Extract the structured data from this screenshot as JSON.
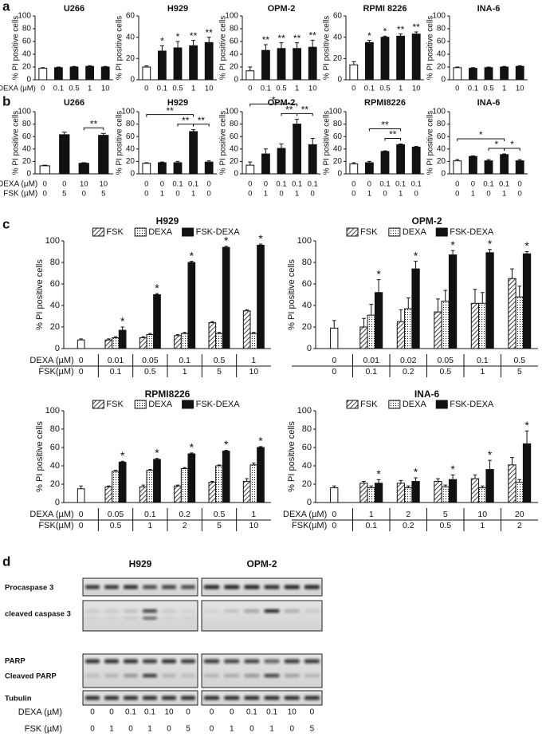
{
  "panel_labels": [
    "a",
    "b",
    "c",
    "d"
  ],
  "chart_data": [
    {
      "type": "bar",
      "title": "U266",
      "ylabel": "% PI positive cells",
      "x_label": "DEXA (µM)",
      "categories": [
        "0",
        "0.1",
        "0.5",
        "1",
        "10"
      ],
      "values": [
        18,
        19,
        20,
        21,
        20
      ],
      "errors": [
        1,
        1,
        1,
        1,
        1
      ],
      "colors": [
        "#ffffff",
        "#111111",
        "#111111",
        "#111111",
        "#111111"
      ],
      "ylim": [
        0,
        100
      ],
      "yticks": [
        0,
        20,
        40,
        60,
        80,
        100
      ]
    },
    {
      "type": "bar",
      "title": "H929",
      "ylabel": "% PI positive cells",
      "categories": [
        "0",
        "0.1",
        "0.5",
        "1",
        "10"
      ],
      "values": [
        12,
        27,
        30,
        32,
        35
      ],
      "errors": [
        1,
        5,
        6,
        5,
        5
      ],
      "stars": [
        null,
        "*",
        "*",
        "**",
        "**"
      ],
      "colors": [
        "#ffffff",
        "#111111",
        "#111111",
        "#111111",
        "#111111"
      ],
      "ylim": [
        0,
        60
      ],
      "yticks": [
        0,
        20,
        40,
        60
      ]
    },
    {
      "type": "bar",
      "title": "OPM-2",
      "ylabel": "% PI positive cells",
      "categories": [
        "0",
        "0.1",
        "0.5",
        "1",
        "10"
      ],
      "values": [
        14,
        46,
        49,
        49,
        51
      ],
      "errors": [
        6,
        9,
        9,
        9,
        11
      ],
      "stars": [
        null,
        "**",
        "**",
        "**",
        "**"
      ],
      "colors": [
        "#ffffff",
        "#111111",
        "#111111",
        "#111111",
        "#111111"
      ],
      "ylim": [
        0,
        100
      ],
      "yticks": [
        0,
        20,
        40,
        60,
        80,
        100
      ]
    },
    {
      "type": "bar",
      "title": "RPMI 8226",
      "ylabel": "% PI positive cells",
      "categories": [
        "0",
        "0.1",
        "0.5",
        "1",
        "10"
      ],
      "values": [
        14,
        35,
        40,
        41,
        43
      ],
      "errors": [
        3,
        2,
        1,
        2,
        2
      ],
      "stars": [
        null,
        "*",
        "*",
        "**",
        "**"
      ],
      "colors": [
        "#ffffff",
        "#111111",
        "#111111",
        "#111111",
        "#111111"
      ],
      "ylim": [
        0,
        60
      ],
      "yticks": [
        0,
        20,
        40,
        60
      ]
    },
    {
      "type": "bar",
      "title": "INA-6",
      "ylabel": "% PI positive cells",
      "categories": [
        "0",
        "0.1",
        "0.5",
        "1",
        "10"
      ],
      "values": [
        19,
        18,
        19,
        20,
        21
      ],
      "errors": [
        1,
        1,
        1,
        1,
        1
      ],
      "colors": [
        "#ffffff",
        "#111111",
        "#111111",
        "#111111",
        "#111111"
      ],
      "ylim": [
        0,
        100
      ],
      "yticks": [
        0,
        20,
        40,
        60,
        80,
        100
      ]
    },
    {
      "type": "bar",
      "title": "U266",
      "ylabel": "% PI positive cells",
      "rows": [
        {
          "label": "DEXA (µM)",
          "values": [
            "0",
            "0",
            "10",
            "10"
          ]
        },
        {
          "label": "FSK (µM)",
          "values": [
            "0",
            "5",
            "0",
            "5"
          ]
        }
      ],
      "values": [
        13,
        63,
        17,
        62
      ],
      "errors": [
        1,
        4,
        1,
        3
      ],
      "brackets": [
        {
          "from": 2,
          "to": 3,
          "label": "**"
        }
      ],
      "colors": [
        "#ffffff",
        "#111111",
        "#111111",
        "#111111"
      ],
      "ylim": [
        0,
        100
      ],
      "yticks": [
        0,
        20,
        40,
        60,
        80,
        100
      ]
    },
    {
      "type": "bar",
      "title": "H929",
      "ylabel": "% PI positive cells",
      "rows": [
        {
          "values": [
            "0",
            "0",
            "0.1",
            "0.1",
            "0"
          ]
        },
        {
          "values": [
            "0",
            "1",
            "0",
            "1",
            "0"
          ]
        }
      ],
      "values": [
        17,
        18,
        18,
        68,
        19
      ],
      "errors": [
        1,
        1,
        2,
        3,
        2
      ],
      "brackets": [
        {
          "from": 0,
          "to": 3,
          "label": "**"
        },
        {
          "from": 2,
          "to": 3,
          "label": "**"
        },
        {
          "from": 3,
          "to": 4,
          "label": "**"
        }
      ],
      "colors": [
        "#ffffff",
        "#111111",
        "#111111",
        "#111111",
        "#111111"
      ],
      "ylim": [
        0,
        100
      ],
      "yticks": [
        0,
        20,
        40,
        60,
        80,
        100
      ]
    },
    {
      "type": "bar",
      "title": "OPM-2",
      "ylabel": "% PI positive cells",
      "rows": [
        {
          "values": [
            "0",
            "0",
            "0.1",
            "0.1",
            "0.1"
          ]
        },
        {
          "values": [
            "0",
            "1",
            "0",
            "1",
            "0"
          ]
        }
      ],
      "values": [
        14,
        32,
        41,
        80,
        47
      ],
      "errors": [
        5,
        8,
        7,
        8,
        10
      ],
      "brackets": [
        {
          "from": 0,
          "to": 3,
          "label": "*"
        },
        {
          "from": 2,
          "to": 3,
          "label": "**"
        },
        {
          "from": 3,
          "to": 4,
          "label": "**"
        }
      ],
      "colors": [
        "#ffffff",
        "#111111",
        "#111111",
        "#111111",
        "#111111"
      ],
      "ylim": [
        0,
        100
      ],
      "yticks": [
        0,
        20,
        40,
        60,
        80,
        100
      ]
    },
    {
      "type": "bar",
      "title": "RPMI8226",
      "ylabel": "% PI positive cells",
      "rows": [
        {
          "values": [
            "0",
            "0",
            "0.1",
            "0.1",
            "0.1"
          ]
        },
        {
          "values": [
            "0",
            "1",
            "0",
            "1",
            "0"
          ]
        }
      ],
      "values": [
        16,
        18,
        36,
        47,
        43
      ],
      "errors": [
        2,
        2,
        1,
        1,
        1
      ],
      "brackets": [
        {
          "from": 1,
          "to": 3,
          "label": "**"
        },
        {
          "from": 2,
          "to": 3,
          "label": "**"
        }
      ],
      "colors": [
        "#ffffff",
        "#111111",
        "#111111",
        "#111111",
        "#111111"
      ],
      "ylim": [
        0,
        100
      ],
      "yticks": [
        0,
        20,
        40,
        60,
        80,
        100
      ]
    },
    {
      "type": "bar",
      "title": "INA-6",
      "ylabel": "% PI positive cells",
      "rows": [
        {
          "values": [
            "0",
            "0",
            "0.1",
            "0.1",
            "0"
          ]
        },
        {
          "values": [
            "0",
            "1",
            "0",
            "1",
            "0"
          ]
        }
      ],
      "values": [
        21,
        28,
        21,
        31,
        21
      ],
      "errors": [
        2,
        1,
        2,
        1,
        2
      ],
      "brackets": [
        {
          "from": 0,
          "to": 3,
          "label": "*"
        },
        {
          "from": 2,
          "to": 3,
          "label": "*"
        },
        {
          "from": 3,
          "to": 4,
          "label": "*"
        }
      ],
      "colors": [
        "#ffffff",
        "#111111",
        "#111111",
        "#111111",
        "#111111"
      ],
      "ylim": [
        0,
        100
      ],
      "yticks": [
        0,
        20,
        40,
        60,
        80,
        100
      ]
    },
    {
      "type": "grouped_bar",
      "title": "H929",
      "ylabel": "% PI positive cells",
      "rows": [
        {
          "label": "DEXA (µM)",
          "values": [
            "0",
            "0.01",
            "0.05",
            "0.1",
            "0.5",
            "1"
          ]
        },
        {
          "label": "FSK(µM)",
          "values": [
            "0",
            "0.1",
            "0.5",
            "1",
            "5",
            "10"
          ]
        }
      ],
      "control": {
        "value": 8,
        "error": 1,
        "color": "#ffffff"
      },
      "series": [
        {
          "name": "FSK",
          "pattern": "hatch",
          "values": [
            null,
            8,
            10,
            12,
            24,
            35
          ],
          "errors": [
            null,
            1,
            1,
            1,
            1,
            1
          ]
        },
        {
          "name": "DEXA",
          "pattern": "dots",
          "values": [
            null,
            10,
            13,
            14,
            14,
            14
          ],
          "errors": [
            null,
            1,
            1,
            1,
            1,
            1
          ]
        },
        {
          "name": "FSK-DEXA",
          "pattern": "solid",
          "values": [
            null,
            17,
            50,
            80,
            94,
            96
          ],
          "errors": [
            null,
            3,
            1,
            1,
            1,
            1
          ],
          "stars": [
            null,
            "*",
            "*",
            "*",
            "*",
            "*"
          ]
        }
      ],
      "ylim": [
        0,
        100
      ],
      "yticks": [
        0,
        20,
        40,
        60,
        80,
        100
      ]
    },
    {
      "type": "grouped_bar",
      "title": "OPM-2",
      "ylabel": "% PI positive cells",
      "rows": [
        {
          "values": [
            "0",
            "0.01",
            "0.02",
            "0.05",
            "0.1",
            "0.5"
          ]
        },
        {
          "values": [
            "0",
            "0.1",
            "0.2",
            "0.5",
            "1",
            "5"
          ]
        }
      ],
      "control": {
        "value": 19,
        "error": 7,
        "color": "#ffffff"
      },
      "series": [
        {
          "name": "FSK",
          "pattern": "hatch",
          "values": [
            null,
            20,
            25,
            34,
            42,
            65
          ],
          "errors": [
            null,
            8,
            11,
            12,
            13,
            9
          ]
        },
        {
          "name": "DEXA",
          "pattern": "dots",
          "values": [
            null,
            31,
            37,
            44,
            42,
            48
          ],
          "errors": [
            null,
            10,
            10,
            10,
            10,
            10
          ]
        },
        {
          "name": "FSK-DEXA",
          "pattern": "solid",
          "values": [
            null,
            52,
            74,
            87,
            89,
            88
          ],
          "errors": [
            null,
            12,
            7,
            4,
            3,
            2
          ],
          "stars": [
            null,
            "*",
            "*",
            "*",
            "*",
            "*"
          ]
        }
      ],
      "ylim": [
        0,
        100
      ],
      "yticks": [
        0,
        20,
        40,
        60,
        80,
        100
      ]
    },
    {
      "type": "grouped_bar",
      "title": "RPMI8226",
      "ylabel": "% PI positive cells",
      "rows": [
        {
          "label": "DEXA (µM)",
          "values": [
            "0",
            "0.05",
            "0.1",
            "0.2",
            "0.5",
            "1"
          ]
        },
        {
          "label": "FSK(µM)",
          "values": [
            "0",
            "0.5",
            "1",
            "2",
            "5",
            "10"
          ]
        }
      ],
      "control": {
        "value": 15,
        "error": 3,
        "color": "#ffffff"
      },
      "series": [
        {
          "name": "FSK",
          "pattern": "hatch",
          "values": [
            null,
            17,
            17,
            18,
            22,
            23
          ],
          "errors": [
            null,
            1,
            2,
            1,
            1,
            3
          ]
        },
        {
          "name": "DEXA",
          "pattern": "dots",
          "values": [
            null,
            34,
            35,
            37,
            40,
            41
          ],
          "errors": [
            null,
            1,
            1,
            1,
            1,
            2
          ]
        },
        {
          "name": "FSK-DEXA",
          "pattern": "solid",
          "values": [
            null,
            44,
            47,
            53,
            56,
            60
          ],
          "errors": [
            null,
            1,
            1,
            1,
            1,
            1
          ],
          "stars": [
            null,
            "*",
            "*",
            "*",
            "*",
            "*"
          ]
        }
      ],
      "ylim": [
        0,
        100
      ],
      "yticks": [
        0,
        20,
        40,
        60,
        80,
        100
      ]
    },
    {
      "type": "grouped_bar",
      "title": "INA-6",
      "ylabel": "% PI positive cells",
      "rows": [
        {
          "label": "DEXA (µM)",
          "values": [
            "0",
            "1",
            "2",
            "5",
            "10",
            "20"
          ]
        },
        {
          "label": "FSK(µM)",
          "values": [
            "0",
            "0.1",
            "0.2",
            "0.5",
            "1",
            "2"
          ]
        }
      ],
      "control": {
        "value": 16,
        "error": 2,
        "color": "#ffffff"
      },
      "series": [
        {
          "name": "FSK",
          "pattern": "hatch",
          "values": [
            null,
            21,
            21,
            23,
            26,
            41
          ],
          "errors": [
            null,
            2,
            3,
            3,
            4,
            8
          ]
        },
        {
          "name": "DEXA",
          "pattern": "dots",
          "values": [
            null,
            16,
            16,
            17,
            16,
            22
          ],
          "errors": [
            null,
            2,
            2,
            2,
            2,
            3
          ]
        },
        {
          "name": "FSK-DEXA",
          "pattern": "solid",
          "values": [
            null,
            21,
            23,
            25,
            36,
            64
          ],
          "errors": [
            null,
            4,
            4,
            5,
            10,
            14
          ],
          "stars": [
            null,
            "*",
            "*",
            "*",
            "*",
            "*"
          ]
        }
      ],
      "ylim": [
        0,
        100
      ],
      "yticks": [
        0,
        20,
        40,
        60,
        80,
        100
      ]
    }
  ],
  "blot": {
    "titles": [
      "H929",
      "OPM-2"
    ],
    "row_labels": [
      "Procaspase 3",
      "cleaved caspase 3",
      "PARP",
      "Cleaved PARP",
      "Tubulin"
    ],
    "dexa_label": "DEXA (µM)",
    "fsk_label": "FSK (µM)",
    "lanes": [
      {
        "dexa": [
          "0",
          "0",
          "0.1",
          "0.1",
          "10",
          "0"
        ],
        "fsk": [
          "0",
          "1",
          "0",
          "1",
          "0",
          "5"
        ]
      },
      {
        "dexa": [
          "0",
          "0",
          "0.1",
          "0.1",
          "10",
          "0"
        ],
        "fsk": [
          "0",
          "1",
          "0",
          "1",
          "0",
          "5"
        ]
      }
    ]
  }
}
